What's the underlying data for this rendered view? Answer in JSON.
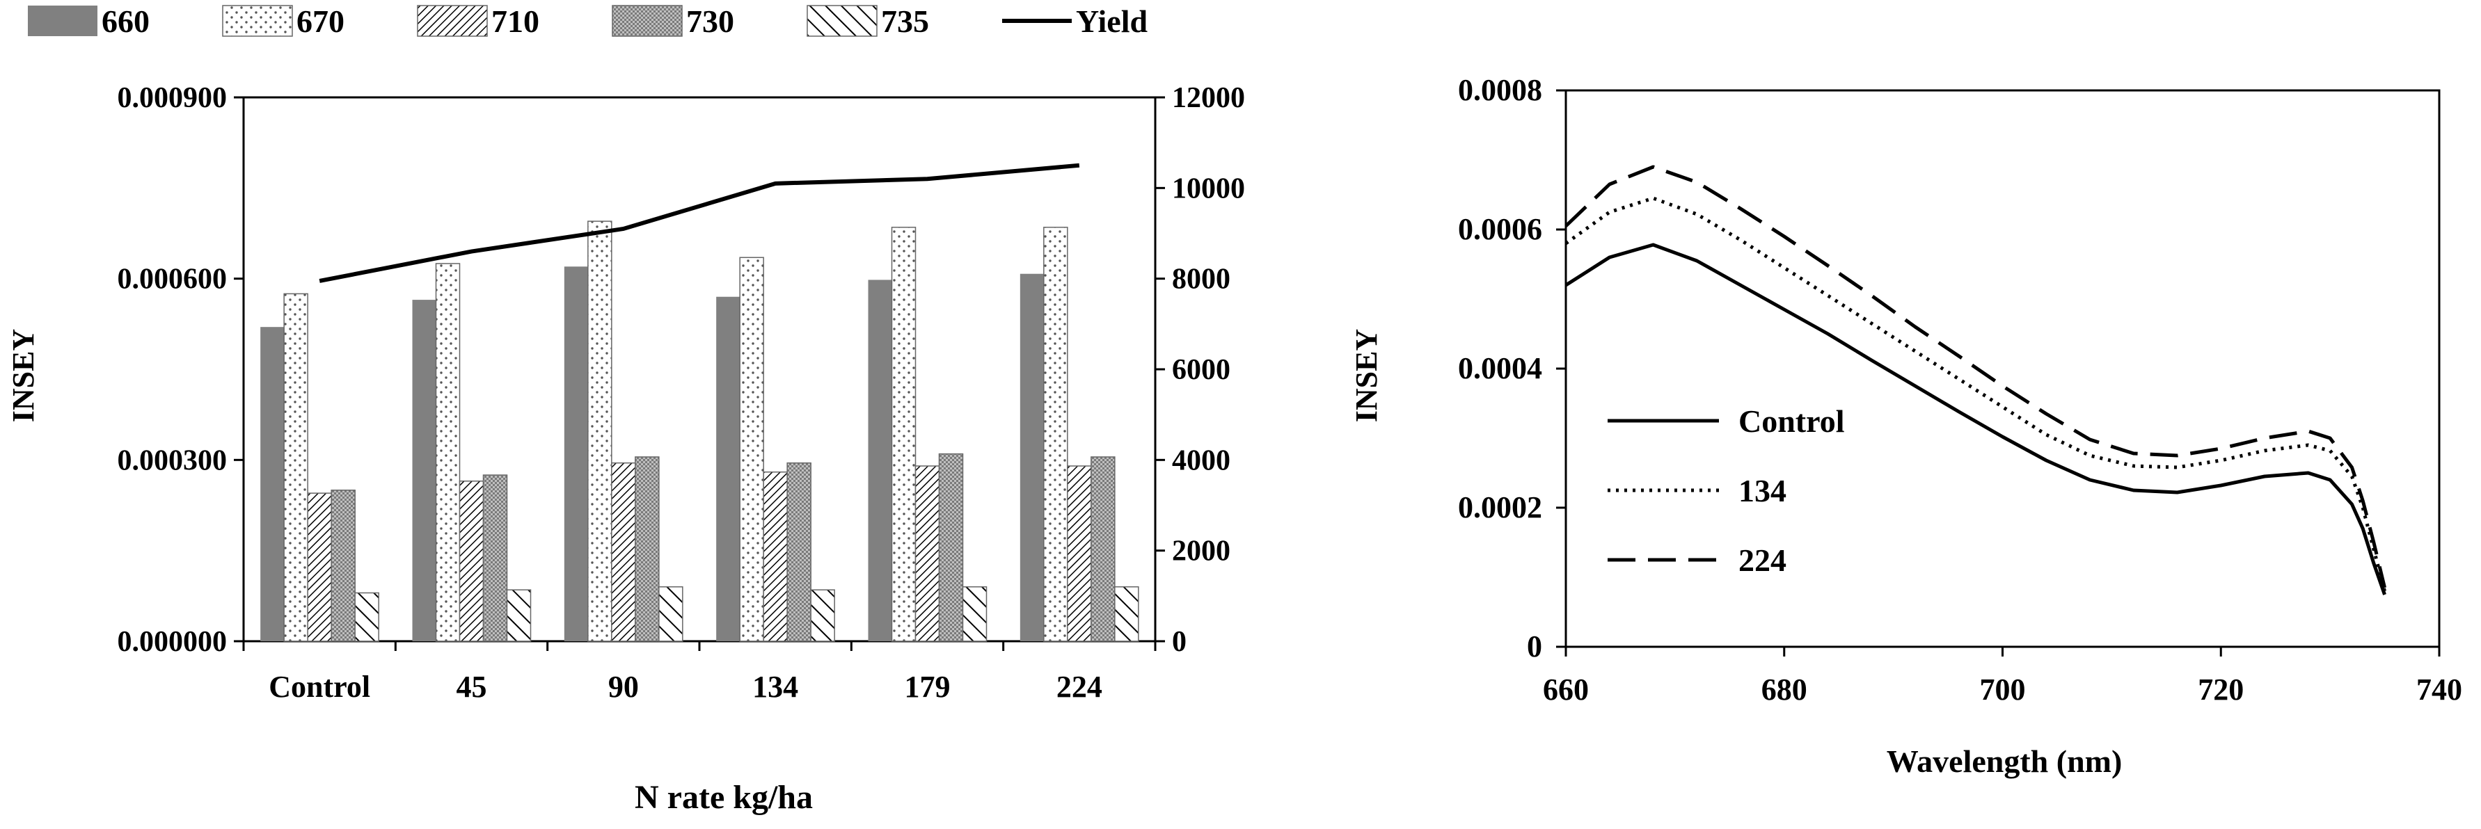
{
  "chart_data": [
    {
      "type": "bar",
      "title": "",
      "xlabel": "N rate kg/ha",
      "ylabel": "INSEY",
      "y2label": "",
      "categories": [
        "Control",
        "45",
        "90",
        "134",
        "179",
        "224"
      ],
      "ylim": [
        0,
        0.0009
      ],
      "y_ticks": [
        "0.000000",
        "0.000300",
        "0.000600",
        "0.000900"
      ],
      "y2lim": [
        0,
        12000
      ],
      "y2_ticks": [
        "0",
        "2000",
        "4000",
        "6000",
        "8000",
        "10000",
        "12000"
      ],
      "legend_placement": "top",
      "series": [
        {
          "name": "660",
          "values": [
            0.00052,
            0.000565,
            0.00062,
            0.00057,
            0.000598,
            0.000608
          ],
          "pattern": "solid",
          "color": "#808080"
        },
        {
          "name": "670",
          "values": [
            0.000575,
            0.000625,
            0.000695,
            0.000635,
            0.000685,
            0.000685
          ],
          "pattern": "dots",
          "color": "#ffffff"
        },
        {
          "name": "710",
          "values": [
            0.000245,
            0.000265,
            0.000295,
            0.00028,
            0.00029,
            0.00029
          ],
          "pattern": "diag-dense",
          "color": "#ffffff"
        },
        {
          "name": "730",
          "values": [
            0.00025,
            0.000275,
            0.000305,
            0.000295,
            0.00031,
            0.000305
          ],
          "pattern": "grid",
          "color": "#bfbfbf"
        },
        {
          "name": "735",
          "values": [
            8e-05,
            8.5e-05,
            9e-05,
            8.5e-05,
            9e-05,
            9e-05
          ],
          "pattern": "diag-wide",
          "color": "#ffffff"
        }
      ],
      "line_series": {
        "name": "Yield",
        "axis": "y2",
        "values": [
          7950,
          8600,
          9100,
          10100,
          10200,
          10500
        ],
        "color": "#000000"
      }
    },
    {
      "type": "line",
      "title": "",
      "xlabel": "Wavelength  (nm)",
      "ylabel": "INSEY",
      "xlim": [
        660,
        740
      ],
      "x_ticks": [
        "660",
        "680",
        "700",
        "720",
        "740"
      ],
      "ylim": [
        0,
        0.0008
      ],
      "y_ticks": [
        "0",
        "0.0002",
        "0.0004",
        "0.0006",
        "0.0008"
      ],
      "legend_placement": "center-left",
      "x": [
        660,
        664,
        668,
        672,
        676,
        680,
        684,
        688,
        692,
        696,
        700,
        704,
        708,
        712,
        716,
        720,
        724,
        728,
        730,
        732,
        733,
        734,
        735
      ],
      "series": [
        {
          "name": "Control",
          "style": "solid",
          "values": [
            0.00052,
            0.00056,
            0.000578,
            0.000555,
            0.00052,
            0.000485,
            0.00045,
            0.000412,
            0.000375,
            0.000338,
            0.000302,
            0.000268,
            0.00024,
            0.000225,
            0.000222,
            0.000232,
            0.000245,
            0.00025,
            0.00024,
            0.000205,
            0.00017,
            0.00012,
            7.5e-05
          ]
        },
        {
          "name": "134",
          "style": "dotted",
          "values": [
            0.00058,
            0.000625,
            0.000645,
            0.000622,
            0.000585,
            0.000545,
            0.000505,
            0.000465,
            0.000425,
            0.000385,
            0.000345,
            0.000305,
            0.000275,
            0.00026,
            0.000258,
            0.000268,
            0.000282,
            0.00029,
            0.000282,
            0.000245,
            0.0002,
            0.00014,
            8e-05
          ]
        },
        {
          "name": "224",
          "style": "dashed",
          "values": [
            0.000605,
            0.000665,
            0.00069,
            0.000668,
            0.00063,
            0.00059,
            0.000548,
            0.000505,
            0.00046,
            0.000418,
            0.000375,
            0.000335,
            0.000298,
            0.000278,
            0.000275,
            0.000285,
            0.0003,
            0.00031,
            0.0003,
            0.000258,
            0.00021,
            0.00015,
            8.5e-05
          ]
        }
      ]
    }
  ]
}
